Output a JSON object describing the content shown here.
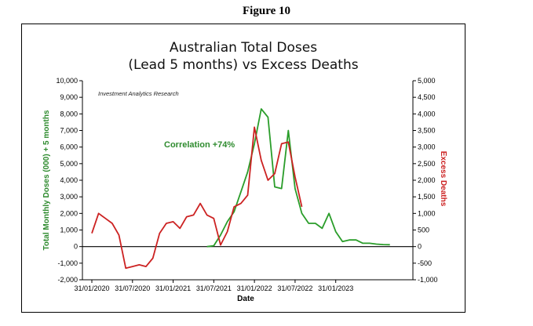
{
  "figure_label": "Figure 10",
  "chart_data": {
    "type": "line",
    "title_line1": "Australian Total Doses",
    "title_line2": "(Lead 5 months) vs Excess Deaths",
    "xlabel": "Date",
    "ylabel_left": "Total Monthly Doses (000) + 5 months",
    "ylabel_right": "Excess Deaths",
    "source_note": "Investment Analytics Research",
    "annotation": "Correlation +74%",
    "ylim_left": [
      -2000,
      10000
    ],
    "ylim_right": [
      -1000,
      5000
    ],
    "left_ticks": [
      "10,000",
      "9,000",
      "8,000",
      "7,000",
      "6,000",
      "5,000",
      "4,000",
      "3,000",
      "2,000",
      "1,000",
      "0",
      "-1,000",
      "-2,000"
    ],
    "right_ticks": [
      "5,000",
      "4,500",
      "4,000",
      "3,500",
      "3,000",
      "2,500",
      "2,000",
      "1,500",
      "1,000",
      "500",
      "0",
      "-500",
      "-1,000"
    ],
    "x_ticks": [
      "31/01/2020",
      "31/07/2020",
      "31/01/2021",
      "31/07/2021",
      "31/01/2022",
      "31/07/2022",
      "31/01/2023"
    ],
    "x_months_range": [
      0,
      46
    ],
    "x_tick_months": [
      0,
      6,
      12,
      18,
      24,
      30,
      36
    ],
    "colors": {
      "doses": "#2a9d2a",
      "deaths": "#cc2222",
      "grid": "#000000"
    },
    "series": [
      {
        "name": "Total Monthly Doses (000) + 5 months",
        "axis": "left",
        "x": [
          17,
          18,
          19,
          20,
          21,
          22,
          23,
          24,
          25,
          26,
          27,
          28,
          29,
          30,
          31,
          32,
          33,
          34,
          35,
          36,
          37,
          38,
          39,
          40,
          41,
          42,
          43,
          44
        ],
        "values": [
          0,
          50,
          700,
          1500,
          2100,
          3300,
          4500,
          6200,
          8300,
          7800,
          3600,
          3500,
          7000,
          3500,
          2000,
          1400,
          1400,
          1100,
          2000,
          900,
          300,
          400,
          400,
          200,
          200,
          150,
          120,
          110
        ]
      },
      {
        "name": "Excess Deaths",
        "axis": "right",
        "x": [
          0,
          1,
          2,
          3,
          4,
          5,
          6,
          7,
          8,
          9,
          10,
          11,
          12,
          13,
          14,
          15,
          16,
          17,
          18,
          19,
          20,
          21,
          22,
          23,
          24,
          25,
          26,
          27,
          28,
          29,
          30,
          31
        ],
        "values": [
          400,
          1000,
          850,
          700,
          350,
          -650,
          -600,
          -550,
          -600,
          -350,
          400,
          700,
          750,
          550,
          900,
          950,
          1300,
          950,
          850,
          50,
          450,
          1200,
          1300,
          1550,
          3600,
          2600,
          2000,
          2200,
          3100,
          3150,
          2100,
          1200
        ]
      }
    ]
  }
}
